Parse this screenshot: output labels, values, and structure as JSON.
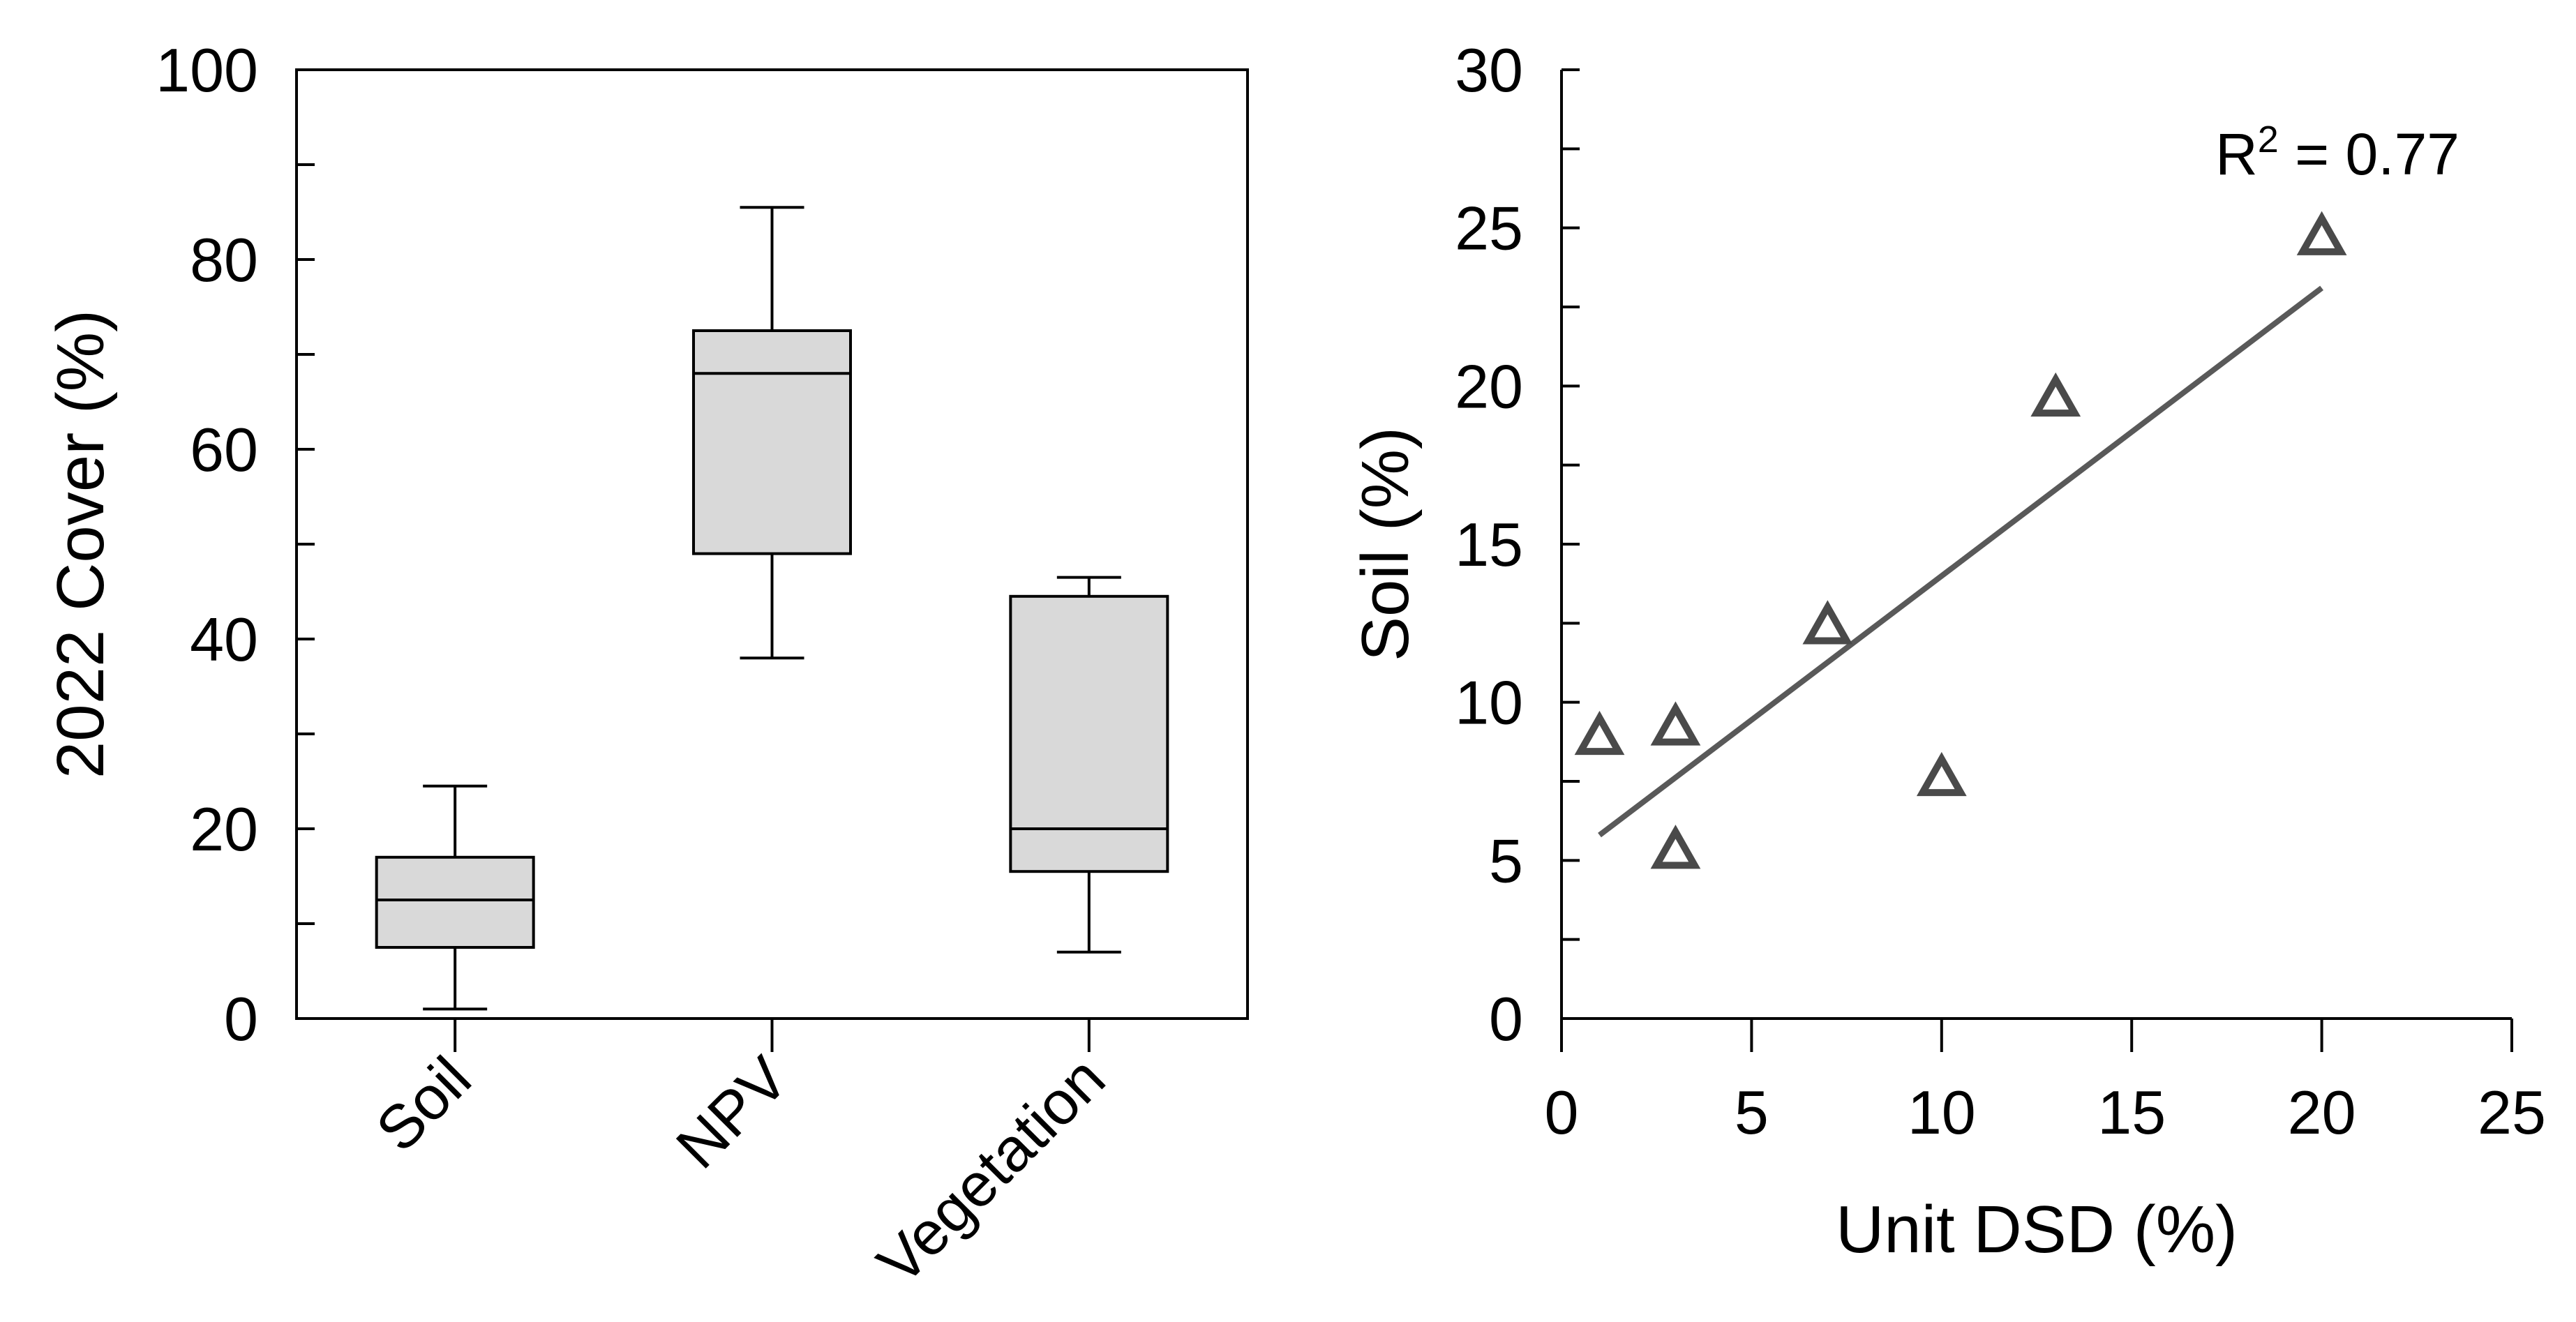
{
  "chart_data": [
    {
      "type": "box",
      "ylabel": "2022 Cover (%)",
      "ylim": [
        0,
        100
      ],
      "yticks_major": [
        0,
        20,
        40,
        60,
        80,
        100
      ],
      "yticks_minor": [
        10,
        30,
        50,
        70,
        90
      ],
      "categories": [
        "Soil",
        "NPV",
        "Vegetation"
      ],
      "boxes": [
        {
          "category": "Soil",
          "min": 1,
          "q1": 7.5,
          "median": 12.5,
          "q3": 17,
          "max": 24.5
        },
        {
          "category": "NPV",
          "min": 38,
          "q1": 49,
          "median": 68,
          "q3": 72.5,
          "max": 85.5
        },
        {
          "category": "Vegetation",
          "min": 7,
          "q1": 15.5,
          "median": 20,
          "q3": 44.5,
          "max": 46.5
        }
      ],
      "colors": {
        "box_fill": "#d9d9d9",
        "line": "#000000"
      }
    },
    {
      "type": "scatter",
      "xlabel": "Unit DSD (%)",
      "ylabel": "Soil (%)",
      "xlim": [
        0,
        25
      ],
      "ylim": [
        0,
        30
      ],
      "xticks": [
        0,
        5,
        10,
        15,
        20,
        25
      ],
      "yticks_major": [
        0,
        5,
        10,
        15,
        20,
        25,
        30
      ],
      "annotation": {
        "r2_base": "R",
        "r2_sup": "2",
        "r2_value": " = 0.77"
      },
      "points": [
        {
          "x": 1,
          "y": 8.8
        },
        {
          "x": 3,
          "y": 9.1
        },
        {
          "x": 3,
          "y": 5.2
        },
        {
          "x": 7,
          "y": 12.3
        },
        {
          "x": 10,
          "y": 7.5
        },
        {
          "x": 13,
          "y": 19.5
        },
        {
          "x": 20,
          "y": 24.6
        }
      ],
      "trendline": {
        "x": [
          1,
          20
        ],
        "y": [
          5.8,
          23.1
        ]
      },
      "colors": {
        "marker": "#4a4a4a",
        "trendline": "#595959"
      }
    }
  ]
}
